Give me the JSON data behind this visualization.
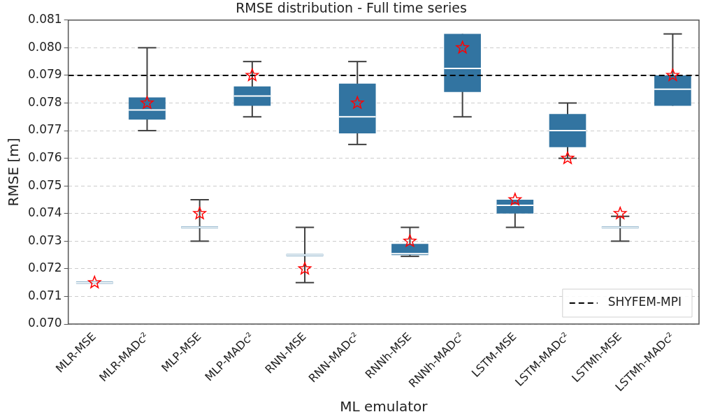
{
  "chart_data": {
    "type": "box",
    "title": "RMSE distribution - Full time series",
    "xlabel": "ML emulator",
    "ylabel": "RMSE [m]",
    "categories": [
      "MLR-MSE",
      "MLR-MADc²",
      "MLP-MSE",
      "MLP-MADc²",
      "RNN-MSE",
      "RNN-MADc²",
      "RNNh-MSE",
      "RNNh-MADc²",
      "LSTM-MSE",
      "LSTM-MADc²",
      "LSTMh-MSE",
      "LSTMh-MADc²"
    ],
    "color": "#3274a1",
    "boxes": [
      {
        "low": 0.0715,
        "q1": 0.0715,
        "median": 0.0715,
        "q3": 0.0715,
        "high": 0.0715
      },
      {
        "low": 0.077,
        "q1": 0.0774,
        "median": 0.07775,
        "q3": 0.0782,
        "high": 0.08
      },
      {
        "low": 0.073,
        "q1": 0.0735,
        "median": 0.0735,
        "q3": 0.0735,
        "high": 0.0745
      },
      {
        "low": 0.0775,
        "q1": 0.0779,
        "median": 0.07825,
        "q3": 0.0786,
        "high": 0.0795
      },
      {
        "low": 0.0715,
        "q1": 0.0725,
        "median": 0.0725,
        "q3": 0.0725,
        "high": 0.0735
      },
      {
        "low": 0.0765,
        "q1": 0.0769,
        "median": 0.0775,
        "q3": 0.0787,
        "high": 0.0795
      },
      {
        "low": 0.07245,
        "q1": 0.0725,
        "median": 0.07255,
        "q3": 0.0729,
        "high": 0.0735
      },
      {
        "low": 0.0775,
        "q1": 0.0784,
        "median": 0.07925,
        "q3": 0.0805,
        "high": 0.0805
      },
      {
        "low": 0.0735,
        "q1": 0.074,
        "median": 0.0743,
        "q3": 0.0745,
        "high": 0.0745
      },
      {
        "low": 0.076,
        "q1": 0.0764,
        "median": 0.077,
        "q3": 0.0776,
        "high": 0.078
      },
      {
        "low": 0.073,
        "q1": 0.0735,
        "median": 0.0735,
        "q3": 0.0735,
        "high": 0.0739
      },
      {
        "low": 0.0779,
        "q1": 0.0779,
        "median": 0.0785,
        "q3": 0.079,
        "high": 0.0805
      }
    ],
    "series": [
      {
        "type": "scatter",
        "color": "#ff0000",
        "x": [
          "MLR-MSE",
          "MLR-MADc²",
          "MLP-MSE",
          "MLP-MADc²",
          "RNN-MSE",
          "RNN-MADc²",
          "RNNh-MSE",
          "RNNh-MADc²",
          "LSTM-MSE",
          "LSTM-MADc²",
          "LSTMh-MSE",
          "LSTMh-MADc²"
        ],
        "values": [
          0.0715,
          0.078,
          0.074,
          0.079,
          0.072,
          0.078,
          0.073,
          0.08,
          0.0745,
          0.076,
          0.074,
          0.079
        ]
      }
    ],
    "marker": "star",
    "ylim": [
      0.07,
      0.081
    ],
    "yticks": [
      {
        "value": 0.07,
        "label": "0.070"
      },
      {
        "value": 0.071,
        "label": "0.071"
      },
      {
        "value": 0.072,
        "label": "0.072"
      },
      {
        "value": 0.073,
        "label": "0.073"
      },
      {
        "value": 0.074,
        "label": "0.074"
      },
      {
        "value": 0.075,
        "label": "0.075"
      },
      {
        "value": 0.076,
        "label": "0.076"
      },
      {
        "value": 0.077,
        "label": "0.077"
      },
      {
        "value": 0.078,
        "label": "0.078"
      },
      {
        "value": 0.079,
        "label": "0.079"
      },
      {
        "value": 0.08,
        "label": "0.080"
      },
      {
        "value": 0.081,
        "label": "0.081"
      }
    ],
    "grid": "y",
    "ref_lines": [
      {
        "axis": "y",
        "value": 0.079,
        "label": "SHYFEM-MPI",
        "color": "#000000",
        "line_style": "dashed"
      }
    ],
    "legend": "bottom right"
  }
}
